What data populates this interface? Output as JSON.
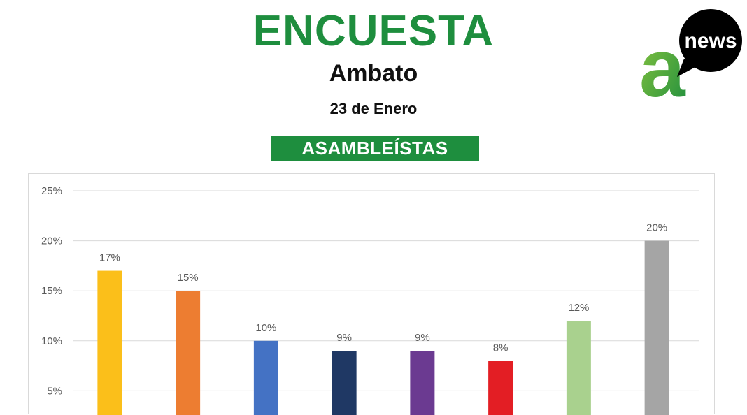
{
  "header": {
    "title": "ENCUESTA",
    "subtitle": "Ambato",
    "date": "23 de Enero",
    "banner": "ASAMBLEÍSTAS"
  },
  "logo": {
    "text": "news",
    "letter": "a",
    "icon": "anews-logo-icon"
  },
  "colors": {
    "brand_green": "#1e8e3e",
    "gridline": "#d9d9d9",
    "label_gray": "#595959"
  },
  "chart_data": {
    "type": "bar",
    "title": "",
    "xlabel": "",
    "ylabel": "",
    "ylim": [
      0,
      25
    ],
    "yticks": [
      "5%",
      "10%",
      "15%",
      "20%",
      "25%"
    ],
    "ytick_values": [
      5,
      10,
      15,
      20,
      25
    ],
    "grid": true,
    "values": [
      17,
      15,
      10,
      9,
      9,
      8,
      12,
      20
    ],
    "data_labels": [
      "17%",
      "15%",
      "10%",
      "9%",
      "9%",
      "8%",
      "12%",
      "20%"
    ],
    "bar_colors": [
      "#fbbf1a",
      "#ed7d31",
      "#4472c4",
      "#1f3864",
      "#6b3a91",
      "#e31e24",
      "#a9d18e",
      "#a5a5a5"
    ]
  }
}
